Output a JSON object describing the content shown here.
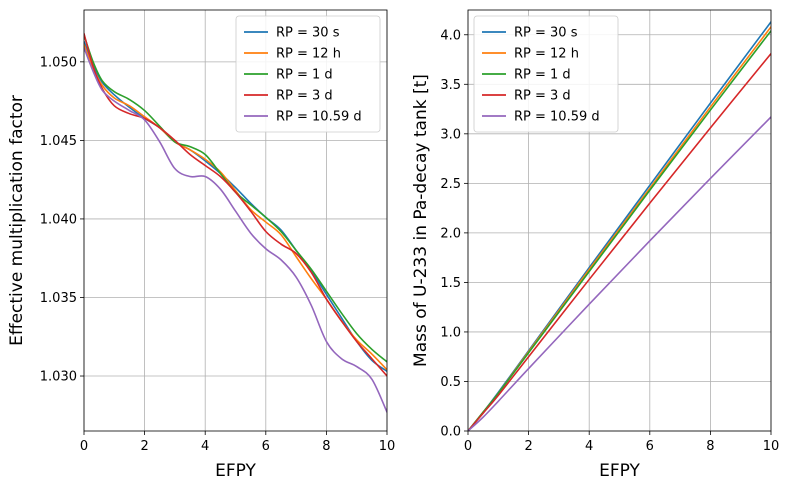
{
  "chart_data": [
    {
      "type": "line",
      "xlabel": "EFPY",
      "ylabel": "Effective multiplication factor",
      "xlim": [
        0,
        10
      ],
      "ylim": [
        1.0265,
        1.0533
      ],
      "xticks": [
        0,
        2,
        4,
        6,
        8,
        10
      ],
      "yticks": [
        1.03,
        1.035,
        1.04,
        1.045,
        1.05
      ],
      "xtick_labels": [
        "0",
        "2",
        "4",
        "6",
        "8",
        "10"
      ],
      "ytick_labels": [
        "1.030",
        "1.035",
        "1.040",
        "1.045",
        "1.050"
      ],
      "grid": true,
      "legend": "top-right",
      "series": [
        {
          "name": "RP = 30 s",
          "color": "#1f77b4",
          "x": [
            0,
            0.3,
            0.6,
            1,
            1.5,
            2,
            2.5,
            3,
            3.5,
            4,
            4.5,
            5,
            5.5,
            6,
            6.5,
            7,
            7.5,
            8,
            8.5,
            9,
            9.5,
            10
          ],
          "y": [
            1.0513,
            1.0498,
            1.0487,
            1.0479,
            1.0471,
            1.0464,
            1.0458,
            1.0449,
            1.0444,
            1.0437,
            1.0429,
            1.042,
            1.041,
            1.0401,
            1.0393,
            1.038,
            1.0367,
            1.0352,
            1.0337,
            1.0322,
            1.031,
            1.0303
          ]
        },
        {
          "name": "RP = 12 h",
          "color": "#ff7f0e",
          "x": [
            0,
            0.3,
            0.6,
            1,
            1.5,
            2,
            2.5,
            3,
            3.5,
            4,
            4.5,
            5,
            5.5,
            6,
            6.5,
            7,
            7.5,
            8,
            8.5,
            9,
            9.5,
            10
          ],
          "y": [
            1.0511,
            1.0496,
            1.0485,
            1.0477,
            1.0472,
            1.0465,
            1.0458,
            1.0449,
            1.0444,
            1.0438,
            1.043,
            1.0418,
            1.0406,
            1.0398,
            1.039,
            1.0376,
            1.0362,
            1.0349,
            1.0335,
            1.0323,
            1.0314,
            1.0304
          ]
        },
        {
          "name": "RP = 1 d",
          "color": "#2ca02c",
          "x": [
            0,
            0.3,
            0.6,
            1,
            1.5,
            2,
            2.5,
            3,
            3.5,
            4,
            4.5,
            5,
            5.5,
            6,
            6.5,
            7,
            7.5,
            8,
            8.5,
            9,
            9.5,
            10
          ],
          "y": [
            1.0517,
            1.05,
            1.0488,
            1.0481,
            1.0476,
            1.0469,
            1.0459,
            1.0449,
            1.0446,
            1.0441,
            1.0429,
            1.0417,
            1.0409,
            1.0401,
            1.0392,
            1.038,
            1.0368,
            1.0354,
            1.034,
            1.0327,
            1.0317,
            1.0309
          ]
        },
        {
          "name": "RP = 3 d",
          "color": "#d62728",
          "x": [
            0,
            0.3,
            0.6,
            1,
            1.5,
            2,
            2.5,
            3,
            3.5,
            4,
            4.5,
            5,
            5.5,
            6,
            6.5,
            7,
            7.5,
            8,
            8.5,
            9,
            9.5,
            10
          ],
          "y": [
            1.0518,
            1.0497,
            1.0483,
            1.0472,
            1.0467,
            1.0464,
            1.0458,
            1.045,
            1.0441,
            1.0434,
            1.0427,
            1.0417,
            1.0405,
            1.0392,
            1.0384,
            1.0378,
            1.0366,
            1.0349,
            1.0335,
            1.0322,
            1.0311,
            1.03
          ]
        },
        {
          "name": "RP = 10.59 d",
          "color": "#9467bd",
          "x": [
            0,
            0.3,
            0.6,
            1,
            1.5,
            2,
            2.5,
            3,
            3.5,
            4,
            4.5,
            5,
            5.5,
            6,
            6.5,
            7,
            7.5,
            8,
            8.5,
            9,
            9.5,
            10
          ],
          "y": [
            1.0509,
            1.0494,
            1.0482,
            1.0475,
            1.0469,
            1.0463,
            1.0449,
            1.0432,
            1.0427,
            1.0427,
            1.0419,
            1.0405,
            1.0391,
            1.0381,
            1.0374,
            1.0363,
            1.0345,
            1.0322,
            1.0311,
            1.0306,
            1.0298,
            1.0277
          ]
        }
      ]
    },
    {
      "type": "line",
      "xlabel": "EFPY",
      "ylabel": "Mass of U-233 in Pa-decay tank [t]",
      "xlim": [
        0,
        10
      ],
      "ylim": [
        0,
        4.25
      ],
      "xticks": [
        0,
        2,
        4,
        6,
        8,
        10
      ],
      "yticks": [
        0,
        0.5,
        1.0,
        1.5,
        2.0,
        2.5,
        3.0,
        3.5,
        4.0
      ],
      "xtick_labels": [
        "0",
        "2",
        "4",
        "6",
        "8",
        "10"
      ],
      "ytick_labels": [
        "0.0",
        "0.5",
        "1.0",
        "1.5",
        "2.0",
        "2.5",
        "3.0",
        "3.5",
        "4.0"
      ],
      "grid": true,
      "legend": "top-left",
      "series": [
        {
          "name": "RP = 30 s",
          "color": "#1f77b4",
          "x": [
            0,
            0.5,
            1,
            2,
            4,
            6,
            8,
            10
          ],
          "y": [
            0,
            0.19,
            0.39,
            0.81,
            1.65,
            2.48,
            3.31,
            4.13
          ]
        },
        {
          "name": "RP = 12 h",
          "color": "#ff7f0e",
          "x": [
            0,
            0.5,
            1,
            2,
            4,
            6,
            8,
            10
          ],
          "y": [
            0,
            0.19,
            0.38,
            0.8,
            1.63,
            2.45,
            3.27,
            4.08
          ]
        },
        {
          "name": "RP = 1 d",
          "color": "#2ca02c",
          "x": [
            0,
            0.5,
            1,
            2,
            4,
            6,
            8,
            10
          ],
          "y": [
            0,
            0.19,
            0.38,
            0.79,
            1.61,
            2.43,
            3.24,
            4.04
          ]
        },
        {
          "name": "RP = 3 d",
          "color": "#d62728",
          "x": [
            0,
            0.5,
            1,
            2,
            4,
            6,
            8,
            10
          ],
          "y": [
            0,
            0.18,
            0.36,
            0.75,
            1.53,
            2.3,
            3.06,
            3.81
          ]
        },
        {
          "name": "RP = 10.59 d",
          "color": "#9467bd",
          "x": [
            0,
            0.5,
            1,
            2,
            4,
            6,
            8,
            10
          ],
          "y": [
            0,
            0.14,
            0.3,
            0.63,
            1.28,
            1.92,
            2.55,
            3.17
          ]
        }
      ]
    }
  ]
}
